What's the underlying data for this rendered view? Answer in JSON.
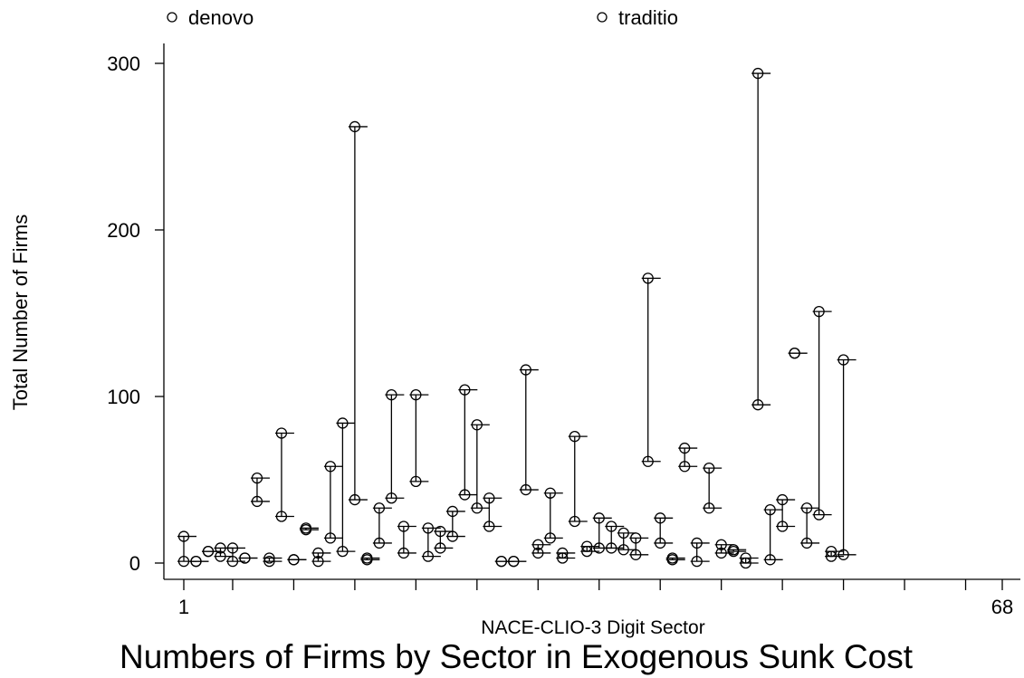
{
  "chart_data": {
    "type": "rcap",
    "title": "Numbers of Firms by Sector in Exogenous Sunk Cost",
    "x_label": "NACE-CLIO-3 Digit Sector",
    "y_label": "Total Number of Firms",
    "x": [
      1,
      2,
      3,
      4,
      5,
      6,
      7,
      8,
      9,
      10,
      11,
      12,
      13,
      14,
      15,
      16,
      17,
      18,
      19,
      20,
      21,
      22,
      23,
      24,
      25,
      26,
      27,
      28,
      29,
      30,
      31,
      32,
      33,
      34,
      35,
      36,
      37,
      38,
      39,
      40,
      41,
      42,
      43,
      44,
      45,
      46,
      47,
      48,
      49,
      50,
      51,
      52,
      53,
      54,
      55
    ],
    "series": [
      {
        "name": "denovo",
        "color": "#000000",
        "values": [
          1,
          1,
          7,
          4,
          1,
          3,
          37,
          1,
          28,
          2,
          20,
          1,
          15,
          7,
          38,
          2,
          12,
          39,
          6,
          49,
          4,
          9,
          16,
          41,
          33,
          22,
          1,
          1,
          44,
          6,
          15,
          3,
          25,
          7,
          9,
          9,
          8,
          5,
          61,
          12,
          2,
          58,
          1,
          33,
          6,
          7,
          0,
          95,
          2,
          22,
          126,
          12,
          29,
          4,
          5
        ]
      },
      {
        "name": "traditio",
        "color": "#000000",
        "values": [
          16,
          1,
          7,
          9,
          9,
          3,
          51,
          3,
          78,
          2,
          21,
          6,
          58,
          84,
          262,
          3,
          33,
          101,
          22,
          101,
          21,
          19,
          31,
          104,
          83,
          39,
          1,
          1,
          116,
          11,
          42,
          6,
          76,
          10,
          27,
          22,
          18,
          15,
          171,
          27,
          3,
          69,
          12,
          57,
          11,
          8,
          3,
          294,
          32,
          38,
          126,
          33,
          151,
          7,
          122
        ]
      }
    ],
    "xlim": [
      1,
      68
    ],
    "xticks": [
      1,
      68
    ],
    "xminor_ticks": [
      5,
      10,
      15,
      20,
      25,
      30,
      35,
      40,
      45,
      50,
      55,
      60,
      65
    ],
    "ylim": [
      0,
      300
    ],
    "yticks": [
      0,
      100,
      200,
      300
    ],
    "grid": false,
    "legend": "top"
  }
}
